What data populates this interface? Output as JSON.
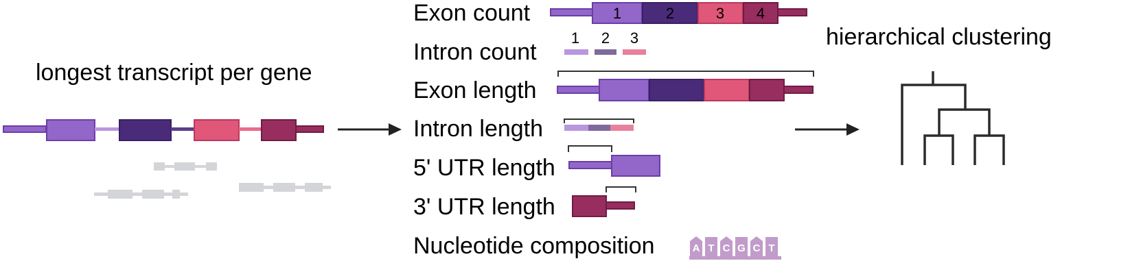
{
  "left": {
    "title": "longest transcript per gene"
  },
  "features": {
    "exon_count": "Exon count",
    "intron_count": "Intron count",
    "exon_length": "Exon length",
    "intron_length": "Intron length",
    "utr5_length": "5' UTR length",
    "utr3_length": "3' UTR length",
    "nucleotide_composition": "Nucleotide composition"
  },
  "exon_numbers": [
    "1",
    "2",
    "3",
    "4"
  ],
  "intron_numbers": [
    "1",
    "2",
    "3"
  ],
  "nucleotides": [
    "A",
    "T",
    "C",
    "G",
    "C",
    "T"
  ],
  "right": {
    "title": "hierarchical clustering"
  },
  "colors": {
    "exon1": "#9366c9",
    "exon2": "#4a2b7a",
    "exon3": "#e0577a",
    "exon4": "#982d60",
    "utr": "#9366c9",
    "gray": "#d3d5d8",
    "nucleotide": "#c19cca"
  }
}
